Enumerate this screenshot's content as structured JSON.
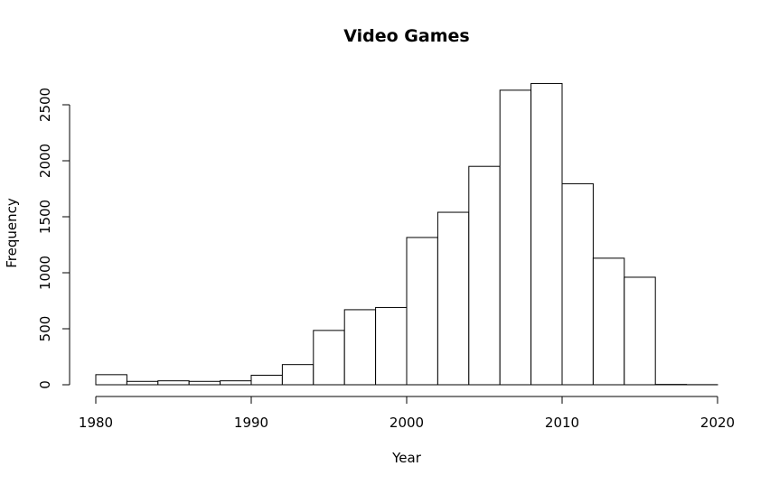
{
  "chart_data": {
    "type": "bar",
    "title": "Video Games",
    "xlabel": "Year",
    "ylabel": "Frequency",
    "bin_width": 2,
    "bins": [
      {
        "start": 1980,
        "end": 1982,
        "value": 90
      },
      {
        "start": 1982,
        "end": 1984,
        "value": 30
      },
      {
        "start": 1984,
        "end": 1986,
        "value": 35
      },
      {
        "start": 1986,
        "end": 1988,
        "value": 30
      },
      {
        "start": 1988,
        "end": 1990,
        "value": 35
      },
      {
        "start": 1990,
        "end": 1992,
        "value": 85
      },
      {
        "start": 1992,
        "end": 1994,
        "value": 180
      },
      {
        "start": 1994,
        "end": 1996,
        "value": 485
      },
      {
        "start": 1996,
        "end": 1998,
        "value": 670
      },
      {
        "start": 1998,
        "end": 2000,
        "value": 690
      },
      {
        "start": 2000,
        "end": 2002,
        "value": 1315
      },
      {
        "start": 2002,
        "end": 2004,
        "value": 1540
      },
      {
        "start": 2004,
        "end": 2006,
        "value": 1950
      },
      {
        "start": 2006,
        "end": 2008,
        "value": 2630
      },
      {
        "start": 2008,
        "end": 2010,
        "value": 2690
      },
      {
        "start": 2010,
        "end": 2012,
        "value": 1795
      },
      {
        "start": 2012,
        "end": 2014,
        "value": 1130
      },
      {
        "start": 2014,
        "end": 2016,
        "value": 960
      },
      {
        "start": 2016,
        "end": 2018,
        "value": 3
      },
      {
        "start": 2018,
        "end": 2020,
        "value": 1
      }
    ],
    "xlim": [
      1980,
      2020
    ],
    "ylim": [
      0,
      2500
    ],
    "x_ticks": [
      1980,
      1990,
      2000,
      2010,
      2020
    ],
    "y_ticks": [
      0,
      500,
      1000,
      1500,
      2000,
      2500
    ],
    "grid": false,
    "legend": "none"
  }
}
